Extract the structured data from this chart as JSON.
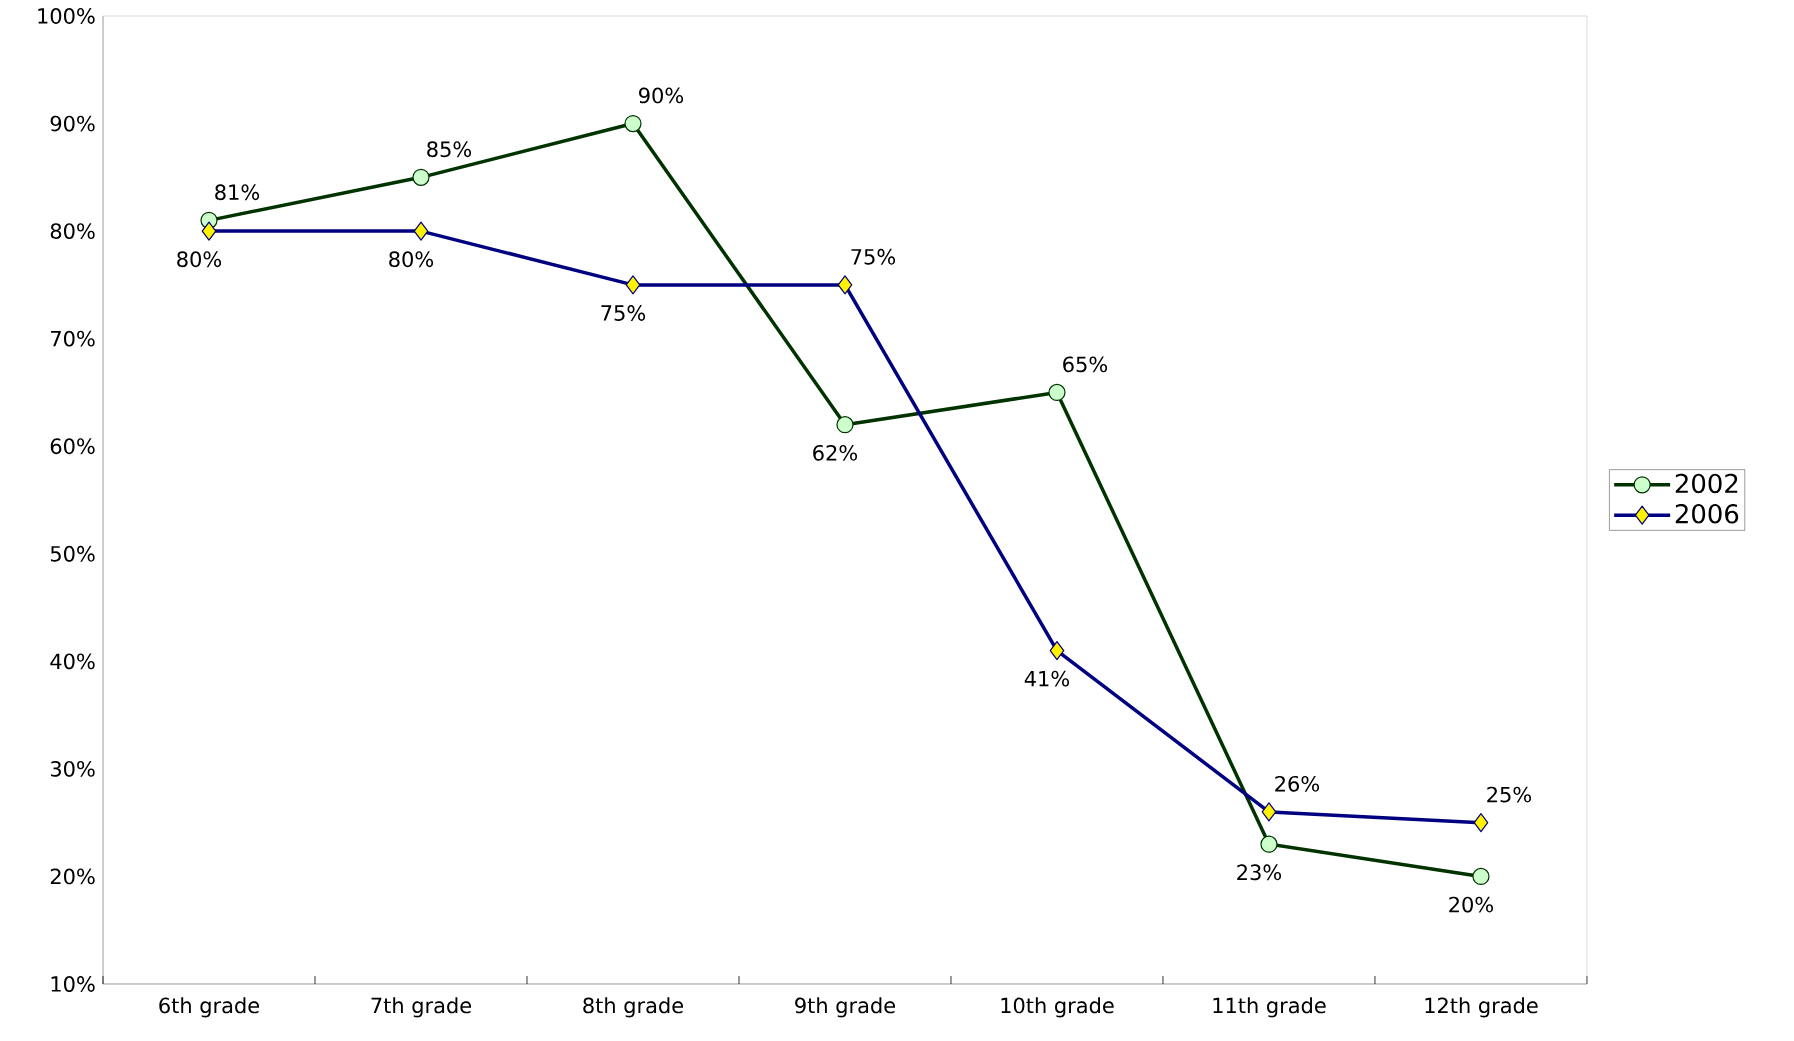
{
  "chart_data": {
    "type": "line",
    "categories": [
      "6th grade",
      "7th grade",
      "8th grade",
      "9th grade",
      "10th grade",
      "11th grade",
      "12th grade"
    ],
    "series": [
      {
        "name": "2002",
        "color": "#003300",
        "marker": "circle",
        "values": [
          81,
          85,
          90,
          62,
          65,
          23,
          20
        ],
        "value_labels": [
          "81%",
          "85%",
          "90%",
          "62%",
          "65%",
          "23%",
          "20%"
        ]
      },
      {
        "name": "2006",
        "color": "#000080",
        "marker": "diamond",
        "values": [
          80,
          80,
          75,
          75,
          41,
          26,
          25
        ],
        "value_labels": [
          "80%",
          "80%",
          "75%",
          "75%",
          "41%",
          "26%",
          "25%"
        ]
      }
    ],
    "ylim": [
      10,
      100
    ],
    "yticks": [
      {
        "value": 10,
        "label": "10%"
      },
      {
        "value": 20,
        "label": "20%"
      },
      {
        "value": 30,
        "label": "30%"
      },
      {
        "value": 40,
        "label": "40%"
      },
      {
        "value": 50,
        "label": "50%"
      },
      {
        "value": 60,
        "label": "60%"
      },
      {
        "value": 70,
        "label": "70%"
      },
      {
        "value": 80,
        "label": "80%"
      },
      {
        "value": 90,
        "label": "90%"
      },
      {
        "value": 100,
        "label": "100%"
      }
    ],
    "grid": false,
    "legend": "right",
    "line_style": "solid"
  }
}
